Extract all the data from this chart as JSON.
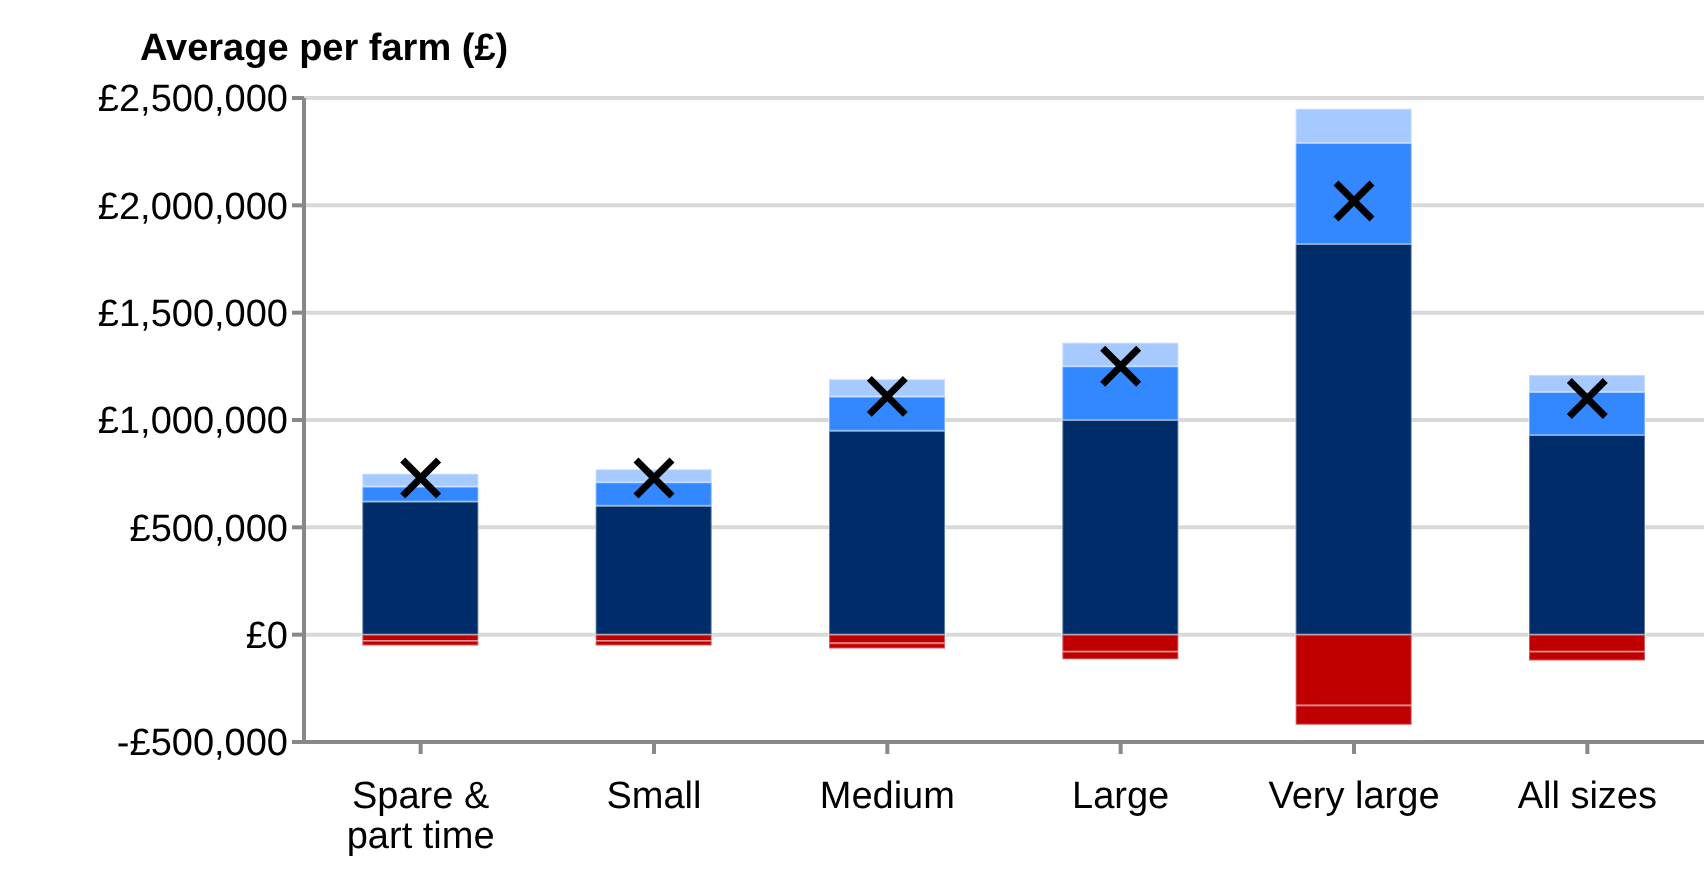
{
  "chart_data": {
    "type": "bar",
    "title": "Average per farm (£)",
    "stacked": true,
    "grid": "y",
    "legend": false,
    "categories": [
      "Spare & part time",
      "Small",
      "Medium",
      "Large",
      "Very large",
      "All sizes"
    ],
    "series": [
      {
        "color": "#002d6a",
        "values": [
          620000,
          600000,
          950000,
          1000000,
          1820000,
          930000
        ]
      },
      {
        "color": "#3388ff",
        "values": [
          70000,
          110000,
          160000,
          250000,
          470000,
          200000
        ]
      },
      {
        "color": "#a6caff",
        "values": [
          60000,
          60000,
          80000,
          110000,
          160000,
          80000
        ]
      },
      {
        "color": "#c00000",
        "values": [
          -30000,
          -30000,
          -40000,
          -80000,
          -330000,
          -80000
        ]
      },
      {
        "color": "#c00000",
        "values": [
          -20000,
          -20000,
          -25000,
          -35000,
          -90000,
          -40000
        ]
      },
      {
        "type": "scatter",
        "marker": "cross",
        "color": "#000000",
        "values": [
          730000,
          730000,
          1110000,
          1250000,
          2020000,
          1100000
        ]
      }
    ],
    "ylim": [
      -500000,
      2500000
    ],
    "yticks": [
      {
        "value": -500000,
        "label": "-£500,000"
      },
      {
        "value": 0,
        "label": "£0"
      },
      {
        "value": 500000,
        "label": "£500,000"
      },
      {
        "value": 1000000,
        "label": "£1,000,000"
      },
      {
        "value": 1500000,
        "label": "£1,500,000"
      },
      {
        "value": 2000000,
        "label": "£2,000,000"
      },
      {
        "value": 2500000,
        "label": "£2,500,000"
      }
    ]
  }
}
